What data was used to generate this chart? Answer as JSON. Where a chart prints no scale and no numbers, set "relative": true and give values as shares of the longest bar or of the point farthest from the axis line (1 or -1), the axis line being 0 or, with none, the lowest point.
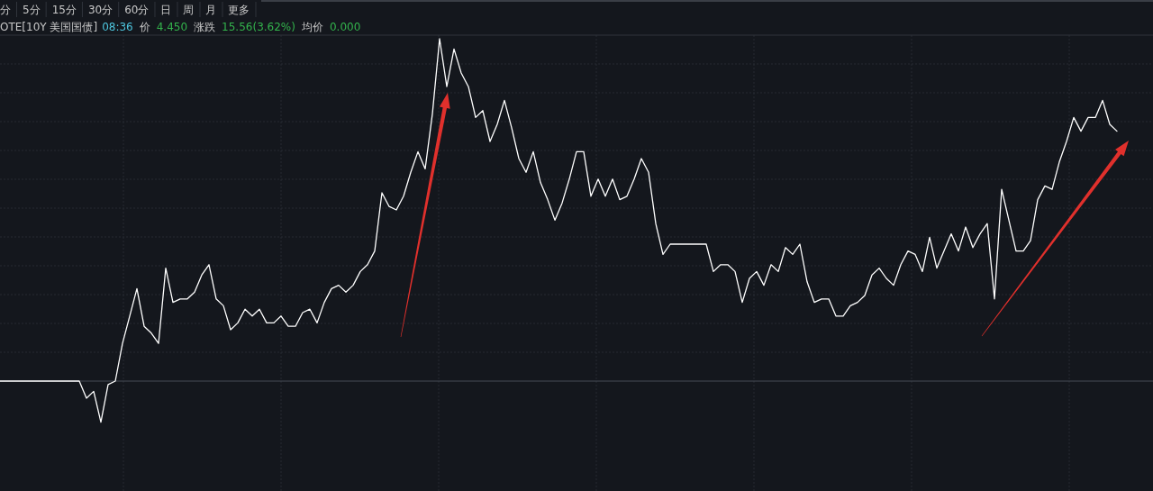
{
  "chart_data": {
    "type": "line",
    "title": "OTE[10Y 美国国债]",
    "annotations": [
      "分",
      "5分",
      "15分",
      "30分",
      "60分",
      "日",
      "周",
      "月",
      "更多",
      "08:36",
      "价",
      "4.450",
      "涨跌",
      "15.56(3.62%)",
      "均价",
      "0.000"
    ],
    "categories": [
      null,
      null,
      null,
      null,
      null,
      null,
      null,
      null,
      null,
      null,
      null,
      null,
      null,
      null,
      null,
      null,
      null,
      null,
      null,
      null,
      null,
      null,
      null,
      null,
      null,
      null,
      null,
      null,
      null,
      null,
      null,
      null,
      null,
      null,
      null,
      null,
      null,
      null,
      null,
      null,
      null,
      null,
      null,
      null,
      null,
      null,
      null,
      null,
      null,
      null,
      null,
      null,
      null,
      null,
      null,
      null,
      null,
      null,
      null,
      null,
      null,
      null,
      null,
      null,
      null,
      null,
      null,
      null,
      null,
      null,
      null,
      null,
      null,
      null,
      null,
      null,
      null,
      null,
      null,
      null,
      null,
      null,
      null,
      null,
      null,
      null,
      null,
      null,
      null,
      null,
      null,
      null,
      null,
      null,
      null,
      null,
      null,
      null,
      null,
      null,
      null,
      null,
      null,
      null,
      null,
      null,
      null,
      null,
      null,
      null,
      null,
      null,
      null,
      null,
      null,
      null,
      null,
      null,
      null,
      null,
      null,
      null,
      null,
      null,
      null,
      null,
      null,
      null,
      null,
      null,
      null,
      null,
      null,
      null,
      null,
      null,
      null,
      null,
      null,
      null,
      null,
      null,
      null,
      null,
      null,
      null,
      null,
      null,
      null,
      null,
      null,
      null,
      null,
      null,
      null,
      null
    ],
    "relative": true,
    "grid": true,
    "series": [
      {
        "color": "#ffffff",
        "values": [
          0,
          0,
          0,
          0,
          0,
          0,
          0,
          0,
          0,
          0,
          0,
          0,
          -0.05,
          -0.03,
          -0.12,
          -0.01,
          0,
          0.11,
          0.19,
          0.27,
          0.16,
          0.14,
          0.11,
          0.33,
          0.23,
          0.24,
          0.24,
          0.26,
          0.31,
          0.34,
          0.24,
          0.22,
          0.15,
          0.17,
          0.21,
          0.19,
          0.21,
          0.17,
          0.17,
          0.19,
          0.16,
          0.16,
          0.2,
          0.21,
          0.17,
          0.23,
          0.27,
          0.28,
          0.26,
          0.28,
          0.32,
          0.34,
          0.38,
          0.55,
          0.51,
          0.5,
          0.54,
          0.61,
          0.67,
          0.62,
          0.78,
          1.0,
          0.86,
          0.97,
          0.9,
          0.86,
          0.77,
          0.79,
          0.7,
          0.75,
          0.82,
          0.74,
          0.65,
          0.61,
          0.67,
          0.58,
          0.53,
          0.47,
          0.52,
          0.59,
          0.67,
          0.67,
          0.54,
          0.59,
          0.54,
          0.59,
          0.53,
          0.54,
          0.59,
          0.65,
          0.61,
          0.46,
          0.37,
          0.4,
          0.4,
          0.4,
          0.4,
          0.4,
          0.4,
          0.32,
          0.34,
          0.34,
          0.32,
          0.23,
          0.3,
          0.32,
          0.28,
          0.34,
          0.32,
          0.39,
          0.37,
          0.4,
          0.29,
          0.23,
          0.24,
          0.24,
          0.19,
          0.19,
          0.22,
          0.23,
          0.25,
          0.31,
          0.33,
          0.3,
          0.28,
          0.34,
          0.38,
          0.37,
          0.32,
          0.42,
          0.33,
          0.38,
          0.43,
          0.38,
          0.45,
          0.39,
          0.43,
          0.46,
          0.24,
          0.56,
          0.47,
          0.38,
          0.38,
          0.41,
          0.53,
          0.57,
          0.56,
          0.64,
          0.7,
          0.77,
          0.73,
          0.77,
          0.77,
          0.82,
          0.75,
          0.73
        ]
      }
    ]
  }
}
